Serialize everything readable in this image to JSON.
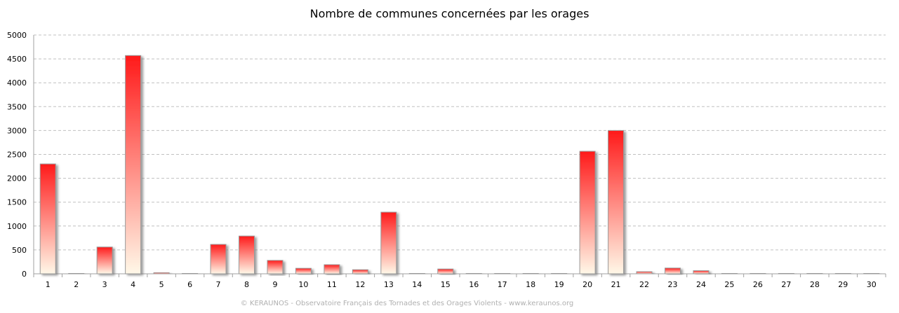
{
  "chart_data": {
    "type": "bar",
    "title": "Nombre de communes concernées par les orages",
    "xlabel": "",
    "ylabel": "",
    "categories": [
      "1",
      "2",
      "3",
      "4",
      "5",
      "6",
      "7",
      "8",
      "9",
      "10",
      "11",
      "12",
      "13",
      "14",
      "15",
      "16",
      "17",
      "18",
      "19",
      "20",
      "21",
      "22",
      "23",
      "24",
      "25",
      "26",
      "27",
      "28",
      "29",
      "30"
    ],
    "values": [
      2300,
      10,
      560,
      4570,
      25,
      3,
      615,
      790,
      280,
      115,
      190,
      85,
      1290,
      3,
      100,
      2,
      2,
      2,
      10,
      2565,
      3000,
      45,
      120,
      65,
      2,
      2,
      2,
      2,
      2,
      2
    ],
    "ylim": [
      0,
      5000
    ],
    "yticks": [
      0,
      500,
      1000,
      1500,
      2000,
      2500,
      3000,
      3500,
      4000,
      4500,
      5000
    ],
    "grid": true,
    "legend": "none",
    "colors": {
      "bar_top": "#ff1a1a",
      "bar_bottom": "#fff8e8",
      "grid": "#c0c0c0",
      "axis": "#a0a0a0"
    }
  },
  "footer": "© KERAUNOS - Observatoire Français des Tornades et des Orages Violents - www.keraunos.org"
}
